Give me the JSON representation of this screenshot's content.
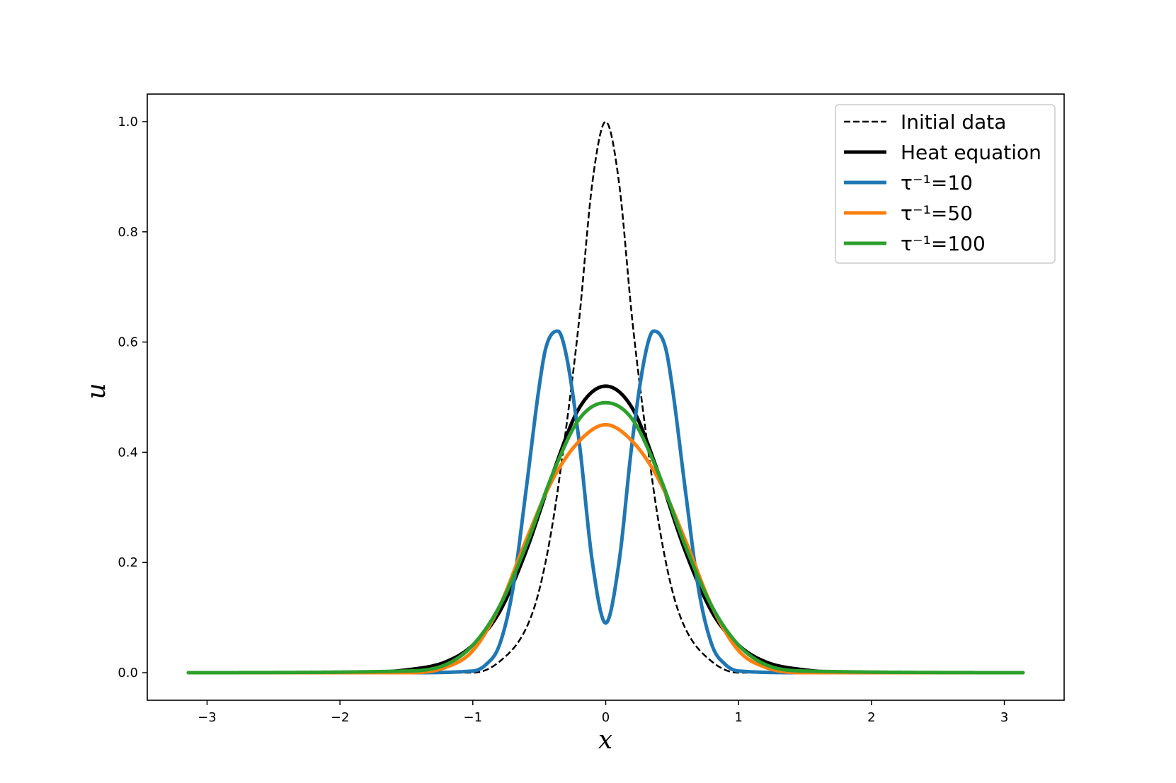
{
  "chart_data": {
    "type": "line",
    "title": "",
    "xlabel": "x",
    "ylabel": "u",
    "xlim": [
      -3.45,
      3.45
    ],
    "ylim": [
      -0.05,
      1.05
    ],
    "xticks": [
      -3,
      -2,
      -1,
      0,
      1,
      2,
      3
    ],
    "xtick_labels": [
      "−3",
      "−2",
      "−1",
      "0",
      "1",
      "2",
      "3"
    ],
    "yticks": [
      0.0,
      0.2,
      0.4,
      0.6,
      0.8,
      1.0
    ],
    "ytick_labels": [
      "0.0",
      "0.2",
      "0.4",
      "0.6",
      "0.8",
      "1.0"
    ],
    "grid": false,
    "legend_position": "top-right",
    "x_range": [
      -3.1416,
      3.1416
    ],
    "series": [
      {
        "name": "Initial data",
        "color": "#000000",
        "style": "dashed",
        "x": [
          -3.14,
          -2.0,
          -1.2,
          -1.0,
          -0.8,
          -0.6,
          -0.5,
          -0.4,
          -0.3,
          -0.2,
          -0.1,
          0.0,
          0.1,
          0.2,
          0.3,
          0.4,
          0.5,
          0.6,
          0.8,
          1.0,
          1.2,
          2.0,
          3.14
        ],
        "y": [
          0.0,
          0.0,
          0.0,
          0.0,
          0.02,
          0.08,
          0.15,
          0.27,
          0.44,
          0.64,
          0.89,
          1.0,
          0.89,
          0.64,
          0.44,
          0.27,
          0.15,
          0.08,
          0.02,
          0.0,
          0.0,
          0.0,
          0.0
        ]
      },
      {
        "name": "Heat equation",
        "color": "#000000",
        "style": "solid",
        "x": [
          -3.14,
          -2.0,
          -1.5,
          -1.2,
          -1.0,
          -0.8,
          -0.6,
          -0.4,
          -0.2,
          0.0,
          0.2,
          0.4,
          0.6,
          0.8,
          1.0,
          1.2,
          1.5,
          2.0,
          3.14
        ],
        "y": [
          0.0,
          0.0,
          0.005,
          0.02,
          0.05,
          0.11,
          0.22,
          0.36,
          0.48,
          0.52,
          0.48,
          0.36,
          0.22,
          0.11,
          0.05,
          0.02,
          0.005,
          0.0,
          0.0
        ]
      },
      {
        "name": "τ⁻¹=10",
        "color": "#1f77b4",
        "style": "solid",
        "x": [
          -3.14,
          -1.5,
          -1.0,
          -0.9,
          -0.8,
          -0.7,
          -0.6,
          -0.5,
          -0.45,
          -0.36,
          -0.3,
          -0.2,
          -0.1,
          0.0,
          0.1,
          0.2,
          0.3,
          0.36,
          0.45,
          0.5,
          0.6,
          0.7,
          0.8,
          0.9,
          1.0,
          1.5,
          3.14
        ],
        "y": [
          0.0,
          0.0,
          0.003,
          0.015,
          0.05,
          0.15,
          0.33,
          0.52,
          0.59,
          0.62,
          0.58,
          0.42,
          0.2,
          0.09,
          0.2,
          0.42,
          0.58,
          0.62,
          0.59,
          0.52,
          0.33,
          0.15,
          0.05,
          0.015,
          0.003,
          0.0,
          0.0
        ]
      },
      {
        "name": "τ⁻¹=50",
        "color": "#ff7f0e",
        "style": "solid",
        "x": [
          -3.14,
          -1.5,
          -1.2,
          -1.0,
          -0.8,
          -0.6,
          -0.4,
          -0.2,
          0.0,
          0.2,
          0.4,
          0.6,
          0.8,
          1.0,
          1.2,
          1.5,
          3.14
        ],
        "y": [
          0.0,
          0.0,
          0.01,
          0.04,
          0.12,
          0.24,
          0.35,
          0.42,
          0.45,
          0.42,
          0.35,
          0.24,
          0.12,
          0.04,
          0.01,
          0.0,
          0.0
        ]
      },
      {
        "name": "τ⁻¹=100",
        "color": "#2ca02c",
        "style": "solid",
        "x": [
          -3.14,
          -1.5,
          -1.2,
          -1.0,
          -0.8,
          -0.6,
          -0.4,
          -0.2,
          0.0,
          0.2,
          0.4,
          0.6,
          0.8,
          1.0,
          1.2,
          1.5,
          3.14
        ],
        "y": [
          0.0,
          0.003,
          0.015,
          0.05,
          0.12,
          0.23,
          0.36,
          0.46,
          0.49,
          0.46,
          0.36,
          0.23,
          0.12,
          0.05,
          0.015,
          0.003,
          0.0
        ]
      }
    ]
  }
}
